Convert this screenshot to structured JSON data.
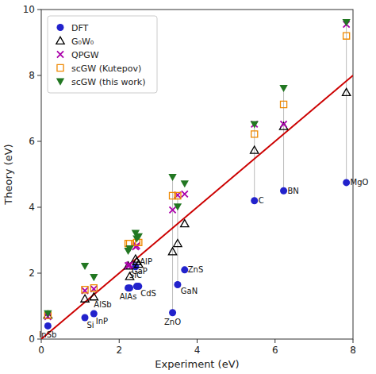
{
  "chart_data": {
    "type": "scatter",
    "xlabel": "Experiment (eV)",
    "ylabel": "Theory (eV)",
    "xlim": [
      0,
      8
    ],
    "ylim": [
      0,
      10
    ],
    "xticks": [
      0,
      2,
      4,
      6,
      8
    ],
    "yticks": [
      0,
      2,
      4,
      6,
      8,
      10
    ],
    "grid": false,
    "legend": "upper left",
    "series": [
      {
        "name": "DFT",
        "color": "#2222cc",
        "marker": "circle",
        "x": [
          0.17,
          1.12,
          1.35,
          3.37,
          3.68,
          3.5,
          2.5,
          2.23,
          2.27,
          2.45,
          5.47,
          6.22,
          7.83,
          2.42
        ],
        "values": [
          0.4,
          0.65,
          0.77,
          0.8,
          2.1,
          1.65,
          1.6,
          1.55,
          1.55,
          1.6,
          4.2,
          4.5,
          4.75,
          2.2
        ]
      },
      {
        "name": "G₀W₀",
        "color": "#000000",
        "marker": "triangle-open",
        "x": [
          0.17,
          1.12,
          1.35,
          2.27,
          2.23,
          2.45,
          2.5,
          2.42,
          3.37,
          3.5,
          3.68,
          5.47,
          6.22,
          7.83
        ],
        "values": [
          0.73,
          1.22,
          1.28,
          1.9,
          2.22,
          2.35,
          2.27,
          2.43,
          2.65,
          2.9,
          3.5,
          5.73,
          6.45,
          7.48
        ]
      },
      {
        "name": "QPGW",
        "color": "#aa00aa",
        "marker": "x",
        "x": [
          0.17,
          1.12,
          1.35,
          2.23,
          2.27,
          2.45,
          2.42,
          3.37,
          3.5,
          3.68,
          5.47,
          6.22,
          7.83
        ],
        "values": [
          0.68,
          1.47,
          1.52,
          2.23,
          2.25,
          2.83,
          2.8,
          3.92,
          4.37,
          4.4,
          6.52,
          6.52,
          9.55
        ]
      },
      {
        "name": "scGW (Kutepov)",
        "color": "#ee8800",
        "marker": "square-open",
        "x": [
          0.17,
          1.12,
          1.35,
          2.23,
          2.27,
          2.45,
          2.5,
          3.37,
          3.5,
          5.47,
          6.22,
          7.83
        ],
        "values": [
          0.72,
          1.5,
          1.55,
          2.9,
          2.9,
          2.93,
          2.93,
          4.35,
          4.35,
          6.22,
          7.12,
          9.2
        ]
      },
      {
        "name": "scGW (this work)",
        "color": "#227722",
        "marker": "triangle-down",
        "x": [
          0.17,
          1.12,
          1.35,
          2.23,
          2.27,
          2.45,
          2.5,
          2.42,
          3.37,
          3.5,
          3.68,
          5.47,
          6.22,
          7.83
        ],
        "values": [
          0.78,
          2.22,
          1.88,
          2.68,
          2.75,
          3.05,
          3.12,
          3.22,
          4.92,
          4.02,
          4.72,
          6.52,
          7.62,
          9.62
        ]
      }
    ],
    "reference_line": {
      "x": [
        0,
        8
      ],
      "values": [
        0,
        8
      ],
      "color": "#cc0000"
    },
    "connectors": {
      "color": "#bbbbbb",
      "x": [
        5.47,
        6.22,
        7.83,
        3.37,
        3.5
      ],
      "y_top": [
        6.52,
        7.62,
        9.62,
        4.92,
        4.37
      ],
      "y_bot": [
        4.2,
        4.5,
        4.75,
        0.8,
        1.65
      ]
    },
    "annotations": [
      {
        "text": "InSb",
        "x": 0.17,
        "y": 0.4
      },
      {
        "text": "Si",
        "x": 1.12,
        "y": 0.65
      },
      {
        "text": "InP",
        "x": 1.35,
        "y": 0.77
      },
      {
        "text": "ZnO",
        "x": 3.37,
        "y": 0.8
      },
      {
        "text": "ZnS",
        "x": 3.68,
        "y": 2.1
      },
      {
        "text": "GaN",
        "x": 3.5,
        "y": 1.65
      },
      {
        "text": "CdS",
        "x": 2.5,
        "y": 1.6
      },
      {
        "text": "AlAs",
        "x": 2.23,
        "y": 1.55
      },
      {
        "text": "GaP",
        "x": 2.27,
        "y": 1.9
      },
      {
        "text": "AlP",
        "x": 2.45,
        "y": 2.35
      },
      {
        "text": "C",
        "x": 5.47,
        "y": 4.2
      },
      {
        "text": "BN",
        "x": 6.22,
        "y": 4.5
      },
      {
        "text": "MgO",
        "x": 7.83,
        "y": 4.75
      },
      {
        "text": "SiC",
        "x": 2.42,
        "y": 2.2
      },
      {
        "text": "AlSb",
        "x": 1.35,
        "y": 1.28
      }
    ]
  }
}
